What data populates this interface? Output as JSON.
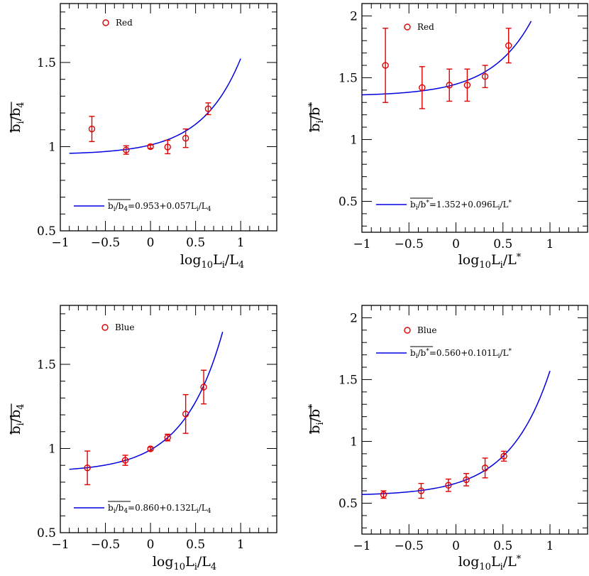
{
  "chart_data": [
    {
      "type": "scatter",
      "xlabel": "log10Li/L4",
      "ylabel": "bi/b4",
      "xlim": [
        -1,
        1.4
      ],
      "ylim": [
        0.5,
        1.85
      ],
      "xticks": [
        -1,
        -0.5,
        0,
        0.5,
        1
      ],
      "xtick_labels": [
        "−1",
        "−0.5",
        "0",
        "0.5",
        "1"
      ],
      "yticks": [
        0.5,
        1,
        1.5
      ],
      "ytick_labels": [
        "0.5",
        "1",
        "1.5"
      ],
      "legend": {
        "label": "Red",
        "position": "top"
      },
      "equation": {
        "lhs": "bi/b4",
        "text": "=0.953+0.057Li/L4",
        "position": "bottom"
      },
      "points": [
        {
          "x": -0.65,
          "y": 1.105,
          "err": 0.075
        },
        {
          "x": -0.27,
          "y": 0.98,
          "err": 0.025
        },
        {
          "x": 0.0,
          "y": 1.0,
          "err": 0.01
        },
        {
          "x": 0.19,
          "y": 0.998,
          "err": 0.04
        },
        {
          "x": 0.39,
          "y": 1.05,
          "err": 0.055
        },
        {
          "x": 0.64,
          "y": 1.225,
          "err": 0.035
        }
      ],
      "fit": {
        "a": 0.953,
        "b": 0.057,
        "x_range": [
          -0.9,
          1.0
        ]
      }
    },
    {
      "type": "scatter",
      "xlabel": "log10Li/L*",
      "ylabel": "bi/b*",
      "xlim": [
        -1,
        1.4
      ],
      "ylim": [
        0.25,
        2.1
      ],
      "xticks": [
        -1,
        -0.5,
        0,
        0.5,
        1
      ],
      "xtick_labels": [
        "−1",
        "−0.5",
        "0",
        "0.5",
        "1"
      ],
      "yticks": [
        0.5,
        1,
        1.5,
        2
      ],
      "ytick_labels": [
        "0.5",
        "1",
        "1.5",
        "2"
      ],
      "legend": {
        "label": "Red",
        "position": "top"
      },
      "equation": {
        "lhs": "bi/b*",
        "text": "=1.352+0.096Li/L*",
        "position": "bottom"
      },
      "points": [
        {
          "x": -0.75,
          "y": 1.6,
          "err": 0.3
        },
        {
          "x": -0.36,
          "y": 1.42,
          "err": 0.17
        },
        {
          "x": -0.07,
          "y": 1.44,
          "err": 0.13
        },
        {
          "x": 0.12,
          "y": 1.44,
          "err": 0.13
        },
        {
          "x": 0.31,
          "y": 1.51,
          "err": 0.09
        },
        {
          "x": 0.56,
          "y": 1.76,
          "err": 0.14
        }
      ],
      "fit": {
        "a": 1.352,
        "b": 0.096,
        "x_range": [
          -1.0,
          0.8
        ]
      }
    },
    {
      "type": "scatter",
      "xlabel": "log10Li/L4",
      "ylabel": "bi/b4",
      "xlim": [
        -1,
        1.4
      ],
      "ylim": [
        0.5,
        1.85
      ],
      "xticks": [
        -1,
        -0.5,
        0,
        0.5,
        1
      ],
      "xtick_labels": [
        "−1",
        "−0.5",
        "0",
        "0.5",
        "1"
      ],
      "yticks": [
        0.5,
        1,
        1.5
      ],
      "ytick_labels": [
        "0.5",
        "1",
        "1.5"
      ],
      "legend": {
        "label": "Blue",
        "position": "top"
      },
      "equation": {
        "lhs": "bi/b4",
        "text": "=0.860+0.132Li/L4",
        "position": "bottom"
      },
      "points": [
        {
          "x": -0.7,
          "y": 0.885,
          "err": 0.1
        },
        {
          "x": -0.28,
          "y": 0.93,
          "err": 0.03
        },
        {
          "x": 0.0,
          "y": 0.998,
          "err": 0.01
        },
        {
          "x": 0.19,
          "y": 1.065,
          "err": 0.02
        },
        {
          "x": 0.39,
          "y": 1.205,
          "err": 0.115
        },
        {
          "x": 0.59,
          "y": 1.365,
          "err": 0.1
        }
      ],
      "fit": {
        "a": 0.86,
        "b": 0.132,
        "x_range": [
          -0.9,
          0.8
        ]
      }
    },
    {
      "type": "scatter",
      "xlabel": "log10Li/L*",
      "ylabel": "bi/b*",
      "xlim": [
        -1,
        1.4
      ],
      "ylim": [
        0.25,
        2.1
      ],
      "xticks": [
        -1,
        -0.5,
        0,
        0.5,
        1
      ],
      "xtick_labels": [
        "−1",
        "−0.5",
        "0",
        "0.5",
        "1"
      ],
      "yticks": [
        0.5,
        1,
        1.5,
        2
      ],
      "ytick_labels": [
        "0.5",
        "1",
        "1.5",
        "2"
      ],
      "legend": {
        "label": "Blue",
        "position": "top"
      },
      "equation": {
        "lhs": "bi/b*",
        "text": "=0.560+0.101Li/L*",
        "position": "top"
      },
      "points": [
        {
          "x": -0.77,
          "y": 0.57,
          "err": 0.03
        },
        {
          "x": -0.37,
          "y": 0.6,
          "err": 0.06
        },
        {
          "x": -0.08,
          "y": 0.645,
          "err": 0.05
        },
        {
          "x": 0.11,
          "y": 0.69,
          "err": 0.05
        },
        {
          "x": 0.31,
          "y": 0.785,
          "err": 0.08
        },
        {
          "x": 0.51,
          "y": 0.88,
          "err": 0.04
        }
      ],
      "fit": {
        "a": 0.56,
        "b": 0.101,
        "x_range": [
          -1.0,
          1.0
        ]
      }
    }
  ]
}
